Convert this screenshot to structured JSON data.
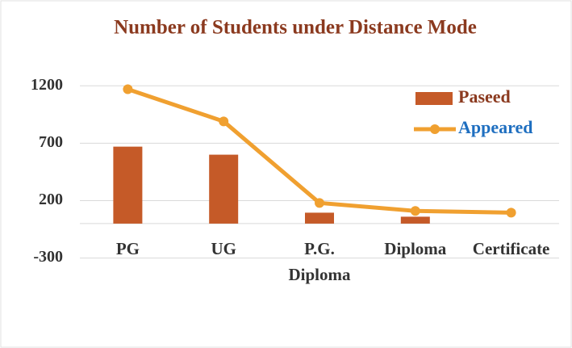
{
  "chart_data": {
    "type": "bar_line",
    "title": "Number of Students under Distance Mode",
    "categories": [
      "PG",
      "UG",
      "P.G. Diploma",
      "Diploma",
      "Certificate"
    ],
    "series": [
      {
        "name": "Paseed",
        "type": "bar",
        "color": "#c55a28",
        "values": [
          670,
          600,
          95,
          60,
          0
        ]
      },
      {
        "name": "Appeared",
        "type": "line",
        "color": "#f0a030",
        "values": [
          1170,
          890,
          180,
          110,
          95
        ]
      }
    ],
    "ylim": [
      -300,
      1300
    ],
    "yticks": [
      -300,
      200,
      700,
      1200
    ],
    "grid": true,
    "legend": "upper right"
  }
}
